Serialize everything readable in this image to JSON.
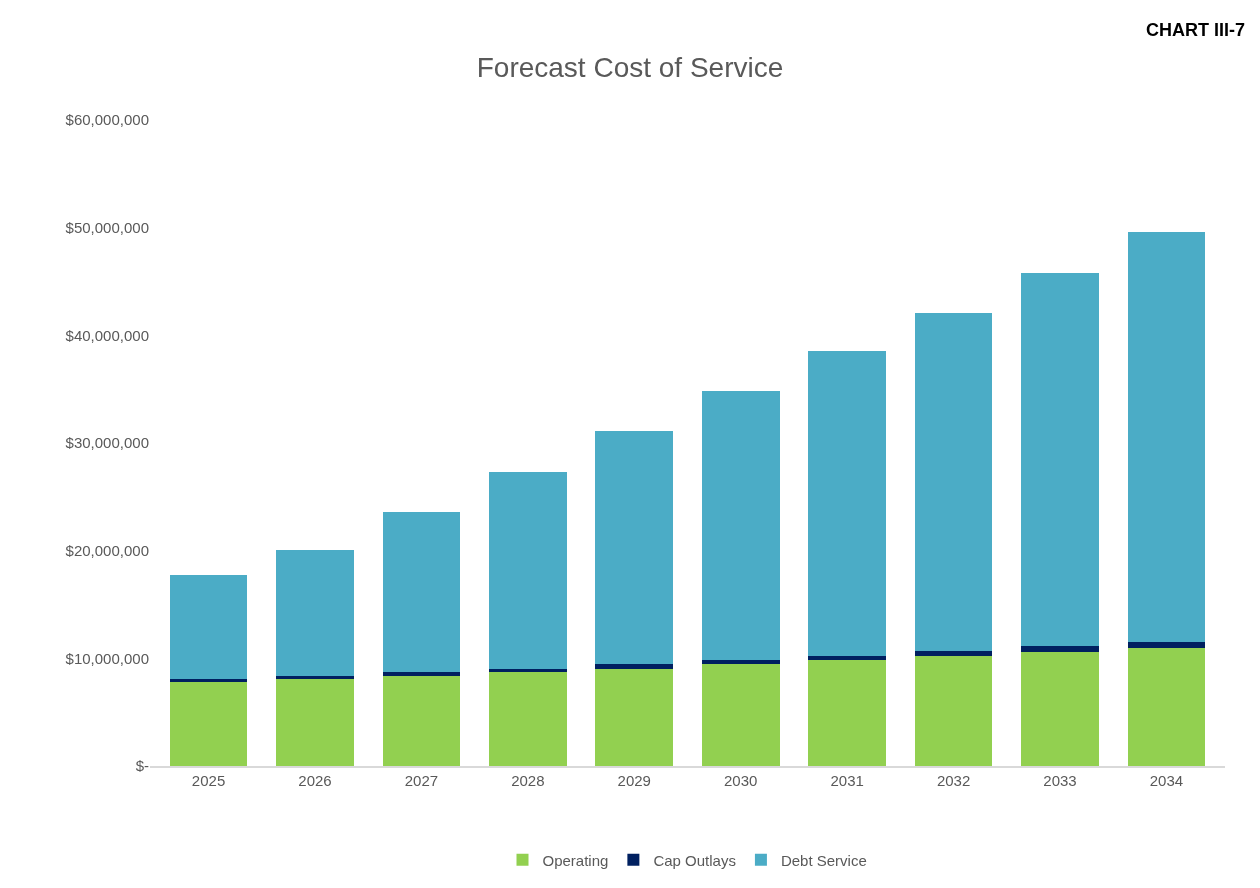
{
  "chart_data": {
    "type": "bar",
    "stacked": true,
    "title": "Forecast Cost of Service",
    "annotations": [
      "CHART III-7"
    ],
    "categories": [
      "2025",
      "2026",
      "2027",
      "2028",
      "2029",
      "2030",
      "2031",
      "2032",
      "2033",
      "2034"
    ],
    "series": [
      {
        "name": "Operating",
        "color": "#92d050",
        "values": [
          7800000,
          8100000,
          8400000,
          8700000,
          9000000,
          9500000,
          9800000,
          10200000,
          10600000,
          11000000
        ]
      },
      {
        "name": "Cap Outlays",
        "color": "#002060",
        "values": [
          300000,
          300000,
          300000,
          300000,
          500000,
          300000,
          400000,
          500000,
          500000,
          500000
        ]
      },
      {
        "name": "Debt Service",
        "color": "#4bacc6",
        "values": [
          9600000,
          11700000,
          14900000,
          18300000,
          21600000,
          25000000,
          28300000,
          31400000,
          34700000,
          38100000
        ]
      }
    ],
    "ylim": [
      0,
      60000000
    ],
    "yticks": [
      {
        "value": 0,
        "label": "$-"
      },
      {
        "value": 10000000,
        "label": "$10,000,000"
      },
      {
        "value": 20000000,
        "label": "$20,000,000"
      },
      {
        "value": 30000000,
        "label": "$30,000,000"
      },
      {
        "value": 40000000,
        "label": "$40,000,000"
      },
      {
        "value": 50000000,
        "label": "$50,000,000"
      },
      {
        "value": 60000000,
        "label": "$60,000,000"
      }
    ],
    "legend": "bottom"
  }
}
